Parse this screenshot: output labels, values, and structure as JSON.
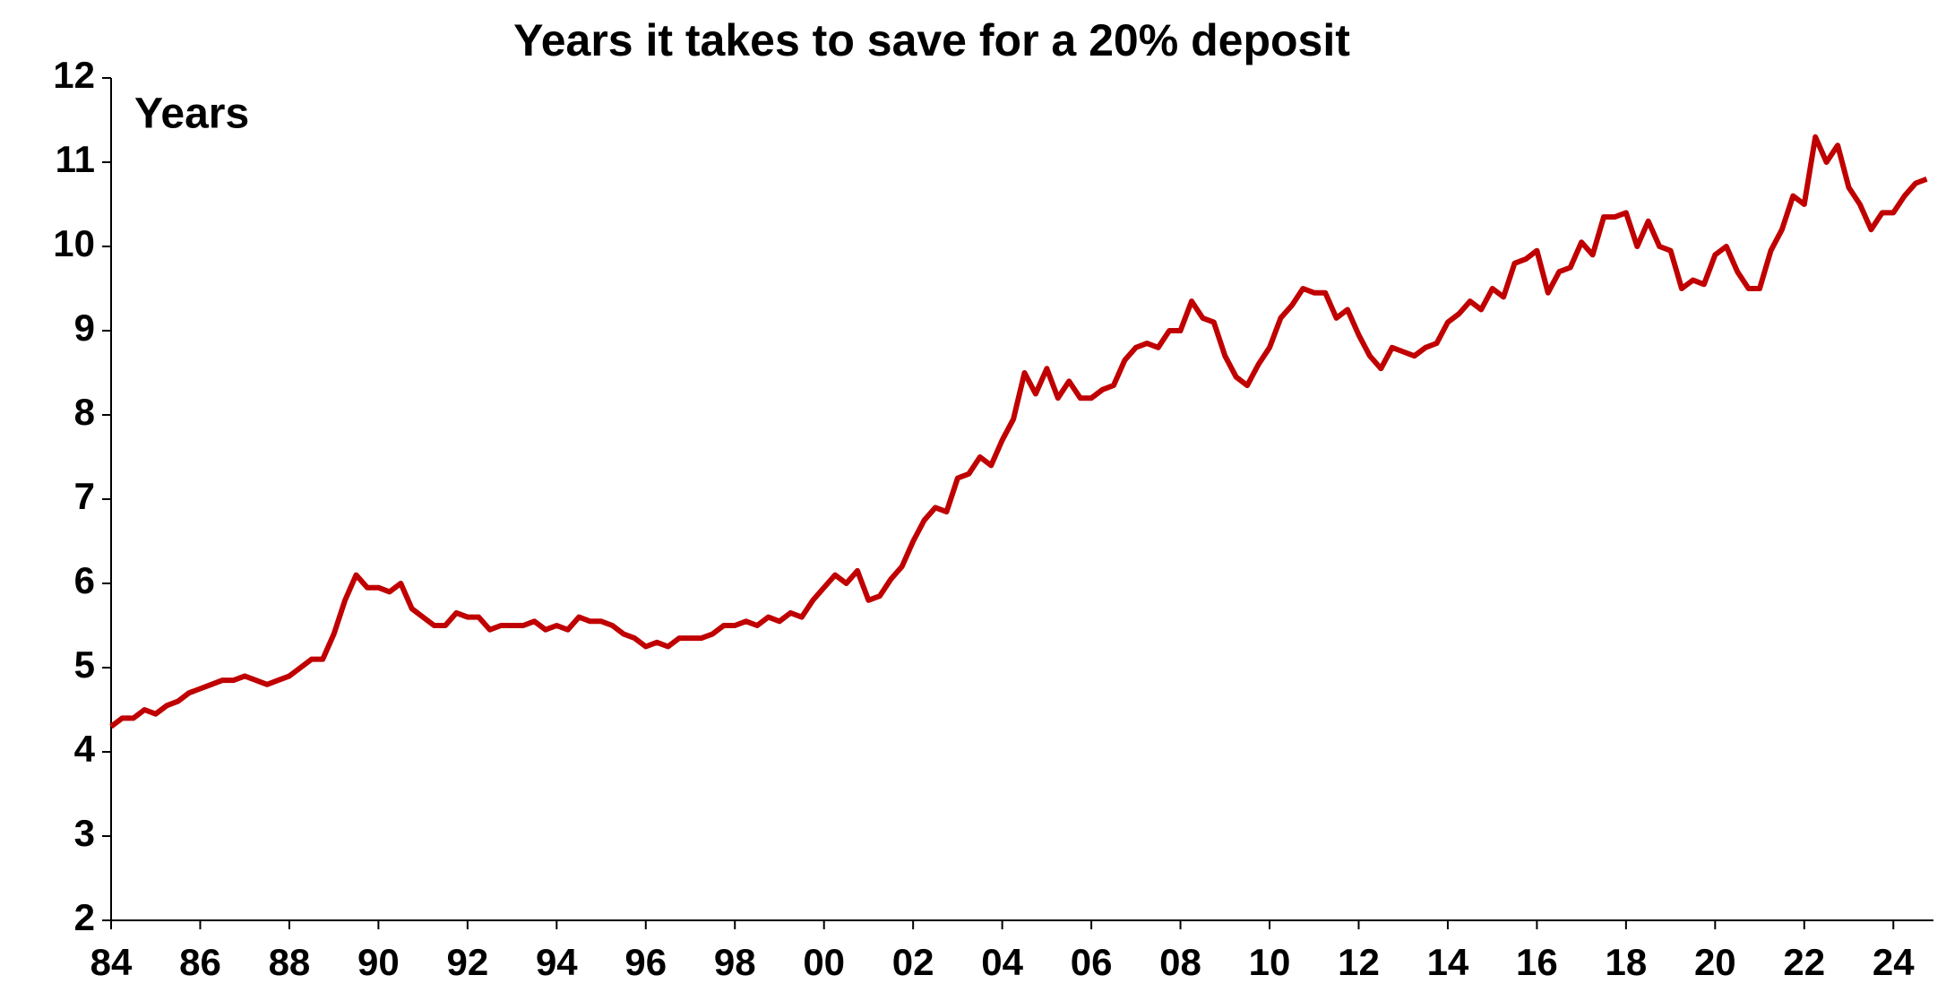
{
  "chart_data": {
    "type": "line",
    "title": "Years it takes to save for a 20% deposit",
    "annotation": "Years",
    "x": [
      1984,
      1984.25,
      1984.5,
      1984.75,
      1985,
      1985.25,
      1985.5,
      1985.75,
      1986,
      1986.25,
      1986.5,
      1986.75,
      1987,
      1987.25,
      1987.5,
      1987.75,
      1988,
      1988.25,
      1988.5,
      1988.75,
      1989,
      1989.25,
      1989.5,
      1989.75,
      1990,
      1990.25,
      1990.5,
      1990.75,
      1991,
      1991.25,
      1991.5,
      1991.75,
      1992,
      1992.25,
      1992.5,
      1992.75,
      1993,
      1993.25,
      1993.5,
      1993.75,
      1994,
      1994.25,
      1994.5,
      1994.75,
      1995,
      1995.25,
      1995.5,
      1995.75,
      1996,
      1996.25,
      1996.5,
      1996.75,
      1997,
      1997.25,
      1997.5,
      1997.75,
      1998,
      1998.25,
      1998.5,
      1998.75,
      1999,
      1999.25,
      1999.5,
      1999.75,
      2000,
      2000.25,
      2000.5,
      2000.75,
      2001,
      2001.25,
      2001.5,
      2001.75,
      2002,
      2002.25,
      2002.5,
      2002.75,
      2003,
      2003.25,
      2003.5,
      2003.75,
      2004,
      2004.25,
      2004.5,
      2004.75,
      2005,
      2005.25,
      2005.5,
      2005.75,
      2006,
      2006.25,
      2006.5,
      2006.75,
      2007,
      2007.25,
      2007.5,
      2007.75,
      2008,
      2008.25,
      2008.5,
      2008.75,
      2009,
      2009.25,
      2009.5,
      2009.75,
      2010,
      2010.25,
      2010.5,
      2010.75,
      2011,
      2011.25,
      2011.5,
      2011.75,
      2012,
      2012.25,
      2012.5,
      2012.75,
      2013,
      2013.25,
      2013.5,
      2013.75,
      2014,
      2014.25,
      2014.5,
      2014.75,
      2015,
      2015.25,
      2015.5,
      2015.75,
      2016,
      2016.25,
      2016.5,
      2016.75,
      2017,
      2017.25,
      2017.5,
      2017.75,
      2018,
      2018.25,
      2018.5,
      2018.75,
      2019,
      2019.25,
      2019.5,
      2019.75,
      2020,
      2020.25,
      2020.5,
      2020.75,
      2021,
      2021.25,
      2021.5,
      2021.75,
      2022,
      2022.25,
      2022.5,
      2022.75,
      2023,
      2023.25,
      2023.5,
      2023.75,
      2024,
      2024.25,
      2024.5,
      2024.75
    ],
    "series": [
      {
        "name": "Years",
        "color": "#c00000",
        "values": [
          4.3,
          4.4,
          4.4,
          4.5,
          4.45,
          4.55,
          4.6,
          4.7,
          4.75,
          4.8,
          4.85,
          4.85,
          4.9,
          4.85,
          4.8,
          4.85,
          4.9,
          5.0,
          5.1,
          5.1,
          5.4,
          5.8,
          6.1,
          5.95,
          5.95,
          5.9,
          6.0,
          5.7,
          5.6,
          5.5,
          5.5,
          5.65,
          5.6,
          5.6,
          5.45,
          5.5,
          5.5,
          5.5,
          5.55,
          5.45,
          5.5,
          5.45,
          5.6,
          5.55,
          5.55,
          5.5,
          5.4,
          5.35,
          5.25,
          5.3,
          5.25,
          5.35,
          5.35,
          5.35,
          5.4,
          5.5,
          5.5,
          5.55,
          5.5,
          5.6,
          5.55,
          5.65,
          5.6,
          5.8,
          5.95,
          6.1,
          6.0,
          6.15,
          5.8,
          5.85,
          6.05,
          6.2,
          6.5,
          6.75,
          6.9,
          6.85,
          7.25,
          7.3,
          7.5,
          7.4,
          7.7,
          7.95,
          8.5,
          8.25,
          8.55,
          8.2,
          8.4,
          8.2,
          8.2,
          8.3,
          8.35,
          8.65,
          8.8,
          8.85,
          8.8,
          9.0,
          9.0,
          9.35,
          9.15,
          9.1,
          8.7,
          8.45,
          8.35,
          8.6,
          8.8,
          9.15,
          9.3,
          9.5,
          9.45,
          9.45,
          9.15,
          9.25,
          8.95,
          8.7,
          8.55,
          8.8,
          8.75,
          8.7,
          8.8,
          8.85,
          9.1,
          9.2,
          9.35,
          9.25,
          9.5,
          9.4,
          9.8,
          9.85,
          9.95,
          9.45,
          9.7,
          9.75,
          10.05,
          9.9,
          10.35,
          10.35,
          10.4,
          10.0,
          10.3,
          10.0,
          9.95,
          9.5,
          9.6,
          9.55,
          9.9,
          10.0,
          9.7,
          9.5,
          9.5,
          9.95,
          10.2,
          10.6,
          10.5,
          11.3,
          11.0,
          11.2,
          10.7,
          10.5,
          10.2,
          10.4,
          10.4,
          10.6,
          10.75,
          10.8
        ]
      }
    ],
    "xlim": [
      1984,
      2024.9
    ],
    "xticks": [
      {
        "value": 1984,
        "label": "84"
      },
      {
        "value": 1986,
        "label": "86"
      },
      {
        "value": 1988,
        "label": "88"
      },
      {
        "value": 1990,
        "label": "90"
      },
      {
        "value": 1992,
        "label": "92"
      },
      {
        "value": 1994,
        "label": "94"
      },
      {
        "value": 1996,
        "label": "96"
      },
      {
        "value": 1998,
        "label": "98"
      },
      {
        "value": 2000,
        "label": "00"
      },
      {
        "value": 2002,
        "label": "02"
      },
      {
        "value": 2004,
        "label": "04"
      },
      {
        "value": 2006,
        "label": "06"
      },
      {
        "value": 2008,
        "label": "08"
      },
      {
        "value": 2010,
        "label": "10"
      },
      {
        "value": 2012,
        "label": "12"
      },
      {
        "value": 2014,
        "label": "14"
      },
      {
        "value": 2016,
        "label": "16"
      },
      {
        "value": 2018,
        "label": "18"
      },
      {
        "value": 2020,
        "label": "20"
      },
      {
        "value": 2022,
        "label": "22"
      },
      {
        "value": 2024,
        "label": "24"
      }
    ],
    "ylim": [
      2,
      12
    ],
    "yticks": [
      2,
      3,
      4,
      5,
      6,
      7,
      8,
      9,
      10,
      11,
      12
    ],
    "grid": false
  }
}
